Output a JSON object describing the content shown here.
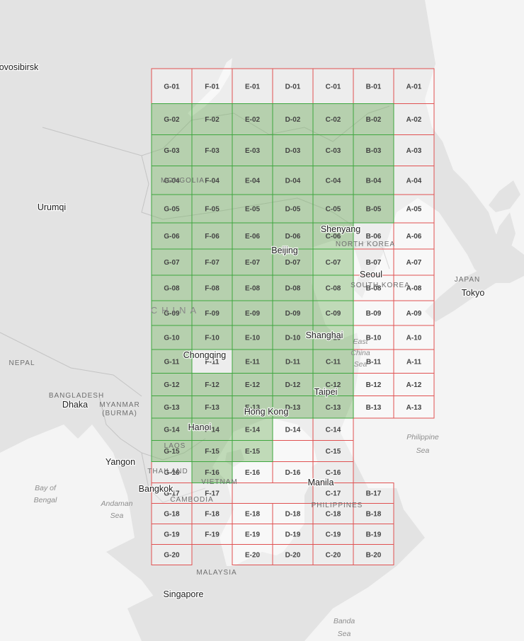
{
  "colors": {
    "land": "#e3e3e3",
    "sea": "#f5f5f5",
    "border": "#c8c8c8",
    "grid_red": "#e05151",
    "grid_green": "#3ea63e",
    "fill_green": "rgba(120,180,100,0.42)"
  },
  "grid": {
    "columns": [
      "G",
      "F",
      "E",
      "D",
      "C",
      "B",
      "A"
    ],
    "rows": [
      "01",
      "02",
      "03",
      "04",
      "05",
      "06",
      "07",
      "08",
      "09",
      "10",
      "11",
      "12",
      "13",
      "14",
      "15",
      "16",
      "17",
      "18",
      "19",
      "20"
    ],
    "tiles": [
      {
        "id": "G-01",
        "c": 0,
        "r": 0,
        "s": "red"
      },
      {
        "id": "F-01",
        "c": 1,
        "r": 0,
        "s": "red"
      },
      {
        "id": "E-01",
        "c": 2,
        "r": 0,
        "s": "red"
      },
      {
        "id": "D-01",
        "c": 3,
        "r": 0,
        "s": "red"
      },
      {
        "id": "C-01",
        "c": 4,
        "r": 0,
        "s": "red"
      },
      {
        "id": "B-01",
        "c": 5,
        "r": 0,
        "s": "red"
      },
      {
        "id": "A-01",
        "c": 6,
        "r": 0,
        "s": "red"
      },
      {
        "id": "G-02",
        "c": 0,
        "r": 1,
        "s": "green"
      },
      {
        "id": "F-02",
        "c": 1,
        "r": 1,
        "s": "green"
      },
      {
        "id": "E-02",
        "c": 2,
        "r": 1,
        "s": "green"
      },
      {
        "id": "D-02",
        "c": 3,
        "r": 1,
        "s": "green"
      },
      {
        "id": "C-02",
        "c": 4,
        "r": 1,
        "s": "green"
      },
      {
        "id": "B-02",
        "c": 5,
        "r": 1,
        "s": "green"
      },
      {
        "id": "A-02",
        "c": 6,
        "r": 1,
        "s": "red"
      },
      {
        "id": "G-03",
        "c": 0,
        "r": 2,
        "s": "green"
      },
      {
        "id": "F-03",
        "c": 1,
        "r": 2,
        "s": "green"
      },
      {
        "id": "E-03",
        "c": 2,
        "r": 2,
        "s": "green"
      },
      {
        "id": "D-03",
        "c": 3,
        "r": 2,
        "s": "green"
      },
      {
        "id": "C-03",
        "c": 4,
        "r": 2,
        "s": "green"
      },
      {
        "id": "B-03",
        "c": 5,
        "r": 2,
        "s": "green"
      },
      {
        "id": "A-03",
        "c": 6,
        "r": 2,
        "s": "red"
      },
      {
        "id": "G-04",
        "c": 0,
        "r": 3,
        "s": "green"
      },
      {
        "id": "F-04",
        "c": 1,
        "r": 3,
        "s": "green"
      },
      {
        "id": "E-04",
        "c": 2,
        "r": 3,
        "s": "green"
      },
      {
        "id": "D-04",
        "c": 3,
        "r": 3,
        "s": "green"
      },
      {
        "id": "C-04",
        "c": 4,
        "r": 3,
        "s": "green"
      },
      {
        "id": "B-04",
        "c": 5,
        "r": 3,
        "s": "green"
      },
      {
        "id": "A-04",
        "c": 6,
        "r": 3,
        "s": "red"
      },
      {
        "id": "G-05",
        "c": 0,
        "r": 4,
        "s": "green"
      },
      {
        "id": "F-05",
        "c": 1,
        "r": 4,
        "s": "green"
      },
      {
        "id": "E-05",
        "c": 2,
        "r": 4,
        "s": "green"
      },
      {
        "id": "D-05",
        "c": 3,
        "r": 4,
        "s": "green"
      },
      {
        "id": "C-05",
        "c": 4,
        "r": 4,
        "s": "green"
      },
      {
        "id": "B-05",
        "c": 5,
        "r": 4,
        "s": "green"
      },
      {
        "id": "A-05",
        "c": 6,
        "r": 4,
        "s": "red"
      },
      {
        "id": "G-06",
        "c": 0,
        "r": 5,
        "s": "green"
      },
      {
        "id": "F-06",
        "c": 1,
        "r": 5,
        "s": "green"
      },
      {
        "id": "E-06",
        "c": 2,
        "r": 5,
        "s": "green"
      },
      {
        "id": "D-06",
        "c": 3,
        "r": 5,
        "s": "green"
      },
      {
        "id": "C-06",
        "c": 4,
        "r": 5,
        "s": "green"
      },
      {
        "id": "B-06",
        "c": 5,
        "r": 5,
        "s": "red"
      },
      {
        "id": "A-06",
        "c": 6,
        "r": 5,
        "s": "red"
      },
      {
        "id": "G-07",
        "c": 0,
        "r": 6,
        "s": "green"
      },
      {
        "id": "F-07",
        "c": 1,
        "r": 6,
        "s": "green"
      },
      {
        "id": "E-07",
        "c": 2,
        "r": 6,
        "s": "green"
      },
      {
        "id": "D-07",
        "c": 3,
        "r": 6,
        "s": "green"
      },
      {
        "id": "C-07",
        "c": 4,
        "r": 6,
        "s": "green"
      },
      {
        "id": "B-07",
        "c": 5,
        "r": 6,
        "s": "red"
      },
      {
        "id": "A-07",
        "c": 6,
        "r": 6,
        "s": "red"
      },
      {
        "id": "G-08",
        "c": 0,
        "r": 7,
        "s": "green"
      },
      {
        "id": "F-08",
        "c": 1,
        "r": 7,
        "s": "green"
      },
      {
        "id": "E-08",
        "c": 2,
        "r": 7,
        "s": "green"
      },
      {
        "id": "D-08",
        "c": 3,
        "r": 7,
        "s": "green"
      },
      {
        "id": "C-08",
        "c": 4,
        "r": 7,
        "s": "green"
      },
      {
        "id": "B-08",
        "c": 5,
        "r": 7,
        "s": "red"
      },
      {
        "id": "A-08",
        "c": 6,
        "r": 7,
        "s": "red"
      },
      {
        "id": "G-09",
        "c": 0,
        "r": 8,
        "s": "green"
      },
      {
        "id": "F-09",
        "c": 1,
        "r": 8,
        "s": "green"
      },
      {
        "id": "E-09",
        "c": 2,
        "r": 8,
        "s": "green"
      },
      {
        "id": "D-09",
        "c": 3,
        "r": 8,
        "s": "green"
      },
      {
        "id": "C-09",
        "c": 4,
        "r": 8,
        "s": "green"
      },
      {
        "id": "B-09",
        "c": 5,
        "r": 8,
        "s": "red"
      },
      {
        "id": "A-09",
        "c": 6,
        "r": 8,
        "s": "red"
      },
      {
        "id": "G-10",
        "c": 0,
        "r": 9,
        "s": "green"
      },
      {
        "id": "F-10",
        "c": 1,
        "r": 9,
        "s": "green"
      },
      {
        "id": "E-10",
        "c": 2,
        "r": 9,
        "s": "green"
      },
      {
        "id": "D-10",
        "c": 3,
        "r": 9,
        "s": "green"
      },
      {
        "id": "C-10",
        "c": 4,
        "r": 9,
        "s": "green"
      },
      {
        "id": "B-10",
        "c": 5,
        "r": 9,
        "s": "red"
      },
      {
        "id": "A-10",
        "c": 6,
        "r": 9,
        "s": "red"
      },
      {
        "id": "G-11",
        "c": 0,
        "r": 10,
        "s": "green"
      },
      {
        "id": "F-11",
        "c": 1,
        "r": 10,
        "s": "red"
      },
      {
        "id": "E-11",
        "c": 2,
        "r": 10,
        "s": "green"
      },
      {
        "id": "D-11",
        "c": 3,
        "r": 10,
        "s": "green"
      },
      {
        "id": "C-11",
        "c": 4,
        "r": 10,
        "s": "green"
      },
      {
        "id": "B-11",
        "c": 5,
        "r": 10,
        "s": "red"
      },
      {
        "id": "A-11",
        "c": 6,
        "r": 10,
        "s": "red"
      },
      {
        "id": "G-12",
        "c": 0,
        "r": 11,
        "s": "green"
      },
      {
        "id": "F-12",
        "c": 1,
        "r": 11,
        "s": "green"
      },
      {
        "id": "E-12",
        "c": 2,
        "r": 11,
        "s": "green"
      },
      {
        "id": "D-12",
        "c": 3,
        "r": 11,
        "s": "green"
      },
      {
        "id": "C-12",
        "c": 4,
        "r": 11,
        "s": "green"
      },
      {
        "id": "B-12",
        "c": 5,
        "r": 11,
        "s": "red"
      },
      {
        "id": "A-12",
        "c": 6,
        "r": 11,
        "s": "red"
      },
      {
        "id": "G-13",
        "c": 0,
        "r": 12,
        "s": "green"
      },
      {
        "id": "F-13",
        "c": 1,
        "r": 12,
        "s": "green"
      },
      {
        "id": "E-13",
        "c": 2,
        "r": 12,
        "s": "green"
      },
      {
        "id": "D-13",
        "c": 3,
        "r": 12,
        "s": "green"
      },
      {
        "id": "C-13",
        "c": 4,
        "r": 12,
        "s": "green"
      },
      {
        "id": "B-13",
        "c": 5,
        "r": 12,
        "s": "red"
      },
      {
        "id": "A-13",
        "c": 6,
        "r": 12,
        "s": "red"
      },
      {
        "id": "G-14",
        "c": 0,
        "r": 13,
        "s": "green"
      },
      {
        "id": "F-14",
        "c": 1,
        "r": 13,
        "s": "green"
      },
      {
        "id": "E-14",
        "c": 2,
        "r": 13,
        "s": "green"
      },
      {
        "id": "D-14",
        "c": 3,
        "r": 13,
        "s": "red"
      },
      {
        "id": "C-14",
        "c": 4,
        "r": 13,
        "s": "red"
      },
      {
        "id": "G-15",
        "c": 0,
        "r": 14,
        "s": "green"
      },
      {
        "id": "F-15",
        "c": 1,
        "r": 14,
        "s": "green"
      },
      {
        "id": "E-15",
        "c": 2,
        "r": 14,
        "s": "green"
      },
      {
        "id": "",
        "c": 3,
        "r": 14,
        "s": "red"
      },
      {
        "id": "C-15",
        "c": 4,
        "r": 14,
        "s": "red"
      },
      {
        "id": "G-16",
        "c": 0,
        "r": 15,
        "s": "red"
      },
      {
        "id": "F-16",
        "c": 1,
        "r": 15,
        "s": "green"
      },
      {
        "id": "E-16",
        "c": 2,
        "r": 15,
        "s": "red"
      },
      {
        "id": "D-16",
        "c": 3,
        "r": 15,
        "s": "red"
      },
      {
        "id": "C-16",
        "c": 4,
        "r": 15,
        "s": "red"
      },
      {
        "id": "G-17",
        "c": 0,
        "r": 16,
        "s": "red"
      },
      {
        "id": "F-17",
        "c": 1,
        "r": 16,
        "s": "red"
      },
      {
        "id": "C-17",
        "c": 4,
        "r": 16,
        "s": "red"
      },
      {
        "id": "B-17",
        "c": 5,
        "r": 16,
        "s": "red"
      },
      {
        "id": "G-18",
        "c": 0,
        "r": 17,
        "s": "red"
      },
      {
        "id": "F-18",
        "c": 1,
        "r": 17,
        "s": "red"
      },
      {
        "id": "E-18",
        "c": 2,
        "r": 17,
        "s": "red"
      },
      {
        "id": "D-18",
        "c": 3,
        "r": 17,
        "s": "red"
      },
      {
        "id": "C-18",
        "c": 4,
        "r": 17,
        "s": "red"
      },
      {
        "id": "B-18",
        "c": 5,
        "r": 17,
        "s": "red"
      },
      {
        "id": "G-19",
        "c": 0,
        "r": 18,
        "s": "red"
      },
      {
        "id": "F-19",
        "c": 1,
        "r": 18,
        "s": "red"
      },
      {
        "id": "E-19",
        "c": 2,
        "r": 18,
        "s": "red"
      },
      {
        "id": "D-19",
        "c": 3,
        "r": 18,
        "s": "red"
      },
      {
        "id": "C-19",
        "c": 4,
        "r": 18,
        "s": "red"
      },
      {
        "id": "B-19",
        "c": 5,
        "r": 18,
        "s": "red"
      },
      {
        "id": "G-20",
        "c": 0,
        "r": 19,
        "s": "red"
      },
      {
        "id": "E-20",
        "c": 2,
        "r": 19,
        "s": "red"
      },
      {
        "id": "D-20",
        "c": 3,
        "r": 19,
        "s": "red"
      },
      {
        "id": "C-20",
        "c": 4,
        "r": 19,
        "s": "red"
      },
      {
        "id": "B-20",
        "c": 5,
        "r": 19,
        "s": "red"
      }
    ]
  },
  "labels": {
    "cities": [
      "Novosibirsk",
      "Urumqi",
      "Shenyang",
      "Beijing",
      "Seoul",
      "Tokyo",
      "Shanghai",
      "Chongqing",
      "Taipei",
      "Hong Kong",
      "Hanoi",
      "Dhaka",
      "Yangon",
      "Bangkok",
      "Manila",
      "Singapore"
    ],
    "countries": [
      "MONGOLIA",
      "NORTH KOREA",
      "SOUTH KOREA",
      "JAPAN",
      "CHINA",
      "NEPAL",
      "BANGLADESH",
      "MYANMAR",
      "(BURMA)",
      "LAOS",
      "THAILAND",
      "VIETNAM",
      "CAMBODIA",
      "PHILIPPINES",
      "MALAYSIA"
    ],
    "seas": [
      "East China Sea",
      "Philippine Sea",
      "Bay of Bengal",
      "Andaman Sea",
      "Banda Sea"
    ]
  }
}
